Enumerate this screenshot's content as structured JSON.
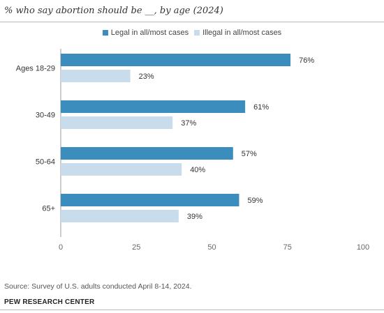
{
  "title": "% who say abortion should be __, by age (2024)",
  "colors": {
    "legal": "#3b8dbd",
    "illegal": "#c9dcec",
    "axis": "#999999"
  },
  "chart_data": {
    "type": "bar",
    "orientation": "horizontal",
    "categories": [
      "Ages 18-29",
      "30-49",
      "50-64",
      "65+"
    ],
    "series": [
      {
        "name": "Legal in all/most cases",
        "values": [
          76,
          61,
          57,
          59
        ],
        "labels": [
          "76%",
          "61%",
          "57%",
          "59%"
        ]
      },
      {
        "name": "Illegal in all/most cases",
        "values": [
          23,
          37,
          40,
          39
        ],
        "labels": [
          "23%",
          "37%",
          "40%",
          "39%"
        ]
      }
    ],
    "xlim": [
      0,
      100
    ],
    "xticks": [
      0,
      25,
      50,
      75,
      100
    ],
    "xlabel": "",
    "ylabel": "",
    "grid": false,
    "legend_position": "top"
  },
  "footer": {
    "source": "Source: Survey of U.S. adults conducted April 8-14, 2024.",
    "brand": "PEW RESEARCH CENTER"
  }
}
